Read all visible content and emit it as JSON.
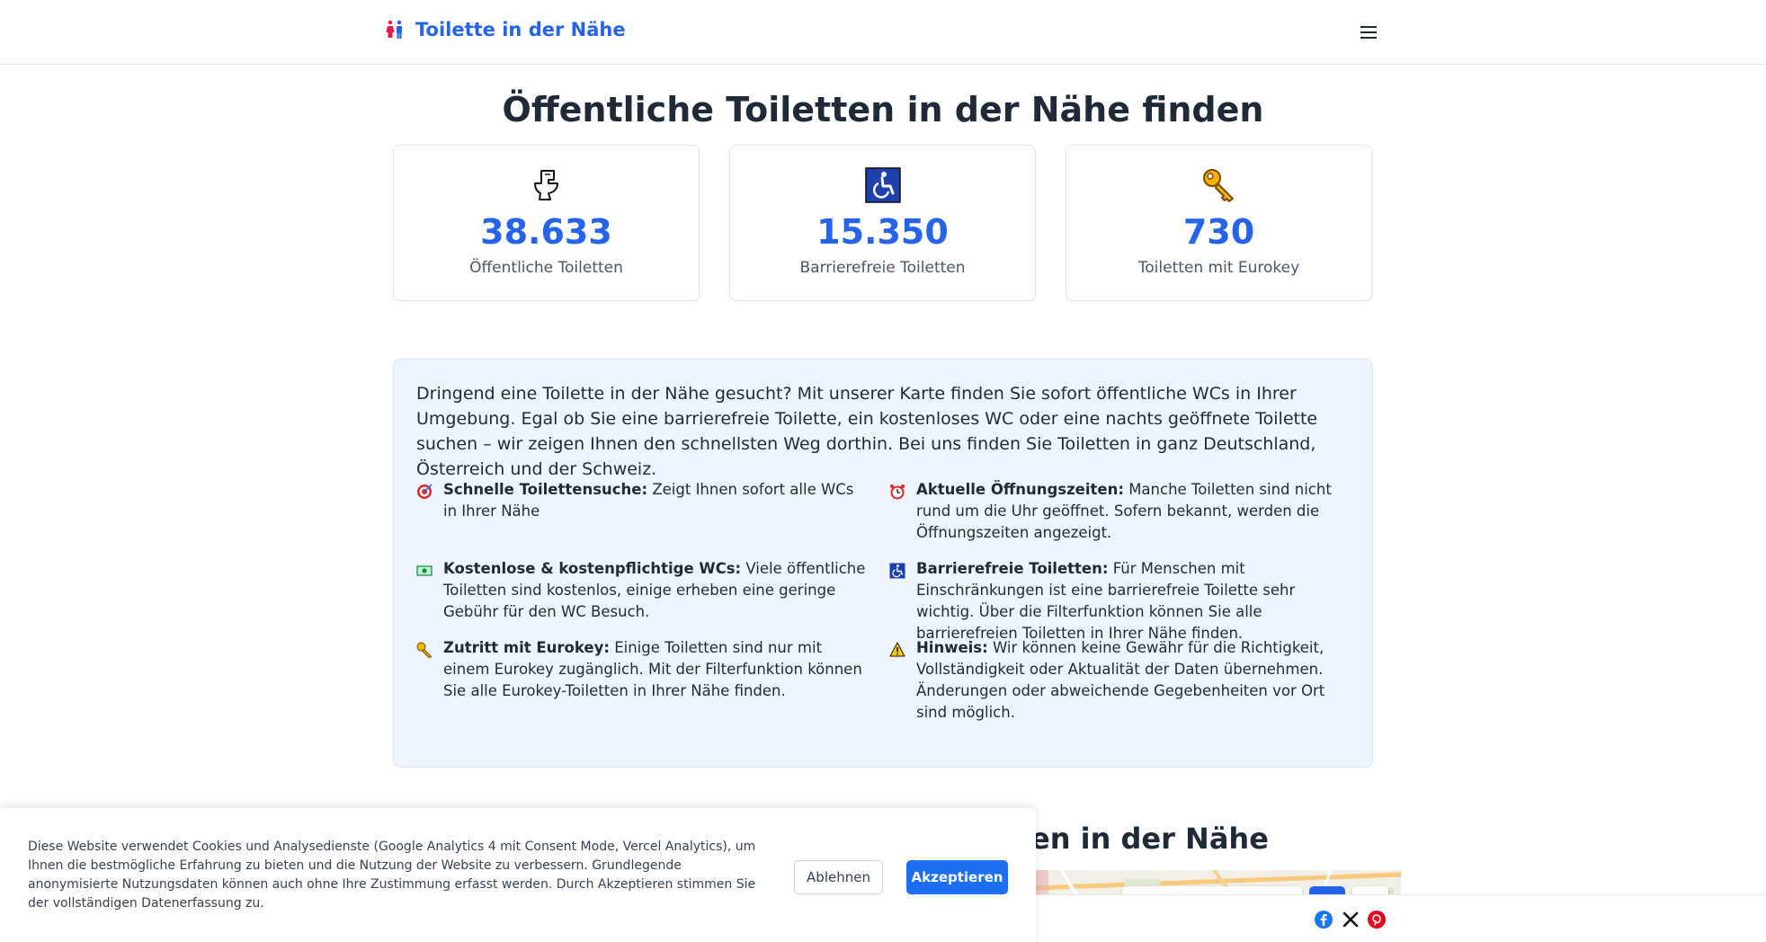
{
  "header": {
    "brand": "Toilette in der Nähe",
    "brand_icon": "restroom-icon",
    "menu_icon": "hamburger-menu-icon"
  },
  "page_title": "Öffentliche Toiletten in der Nähe finden",
  "stats": [
    {
      "icon": "toilet-icon",
      "value": "38.633",
      "label": "Öffentliche Toiletten"
    },
    {
      "icon": "wheelchair-icon",
      "value": "15.350",
      "label": "Barrierefreie Toiletten"
    },
    {
      "icon": "key-icon",
      "value": "730",
      "label": "Toiletten mit Eurokey"
    }
  ],
  "info": {
    "intro": "Dringend eine Toilette in der Nähe gesucht? Mit unserer Karte finden Sie sofort öffentliche WCs in Ihrer Umgebung. Egal ob Sie eine barrierefreie Toilette, ein kostenloses WC oder eine nachts geöffnete Toilette suchen – wir zeigen Ihnen den schnellsten Weg dorthin. Bei uns finden Sie Toiletten in ganz Deutschland, Österreich und der Schweiz.",
    "features": [
      {
        "icon": "target-icon",
        "title": "Schnelle Toilettensuche:",
        "text": " Zeigt Ihnen sofort alle WCs in Ihrer Nähe"
      },
      {
        "icon": "alarm-clock-icon",
        "title": "Aktuelle Öffnungszeiten:",
        "text": " Manche Toiletten sind nicht rund um die Uhr geöffnet. Sofern bekannt, werden die Öffnungszeiten angezeigt."
      },
      {
        "icon": "banknote-icon",
        "title": "Kostenlose & kostenpflichtige WCs:",
        "text": " Viele öffentliche Toiletten sind kostenlos, einige erheben eine geringe Gebühr für den WC Besuch."
      },
      {
        "icon": "wheelchair-icon",
        "title": "Barrierefreie Toiletten:",
        "text": " Für Menschen mit Einschränkungen ist eine barrierefreie Toilette sehr wichtig. Über die Filterfunktion können Sie alle barrierefreien Toiletten in Ihrer Nähe finden."
      },
      {
        "icon": "key-icon",
        "title": "Zutritt mit Eurokey:",
        "text": " Einige Toiletten sind nur mit einem Eurokey zugänglich. Mit der Filterfunktion können Sie alle Eurokey-Toiletten in Ihrer Nähe finden."
      },
      {
        "icon": "warning-icon",
        "title": "Hinweis:",
        "text": " Wir können keine Gewähr für die Richtigkeit, Vollständigkeit oder Aktualität der Daten übernehmen. Änderungen oder abweichende Gegebenheiten vor Ort sind möglich."
      }
    ]
  },
  "section2_title_partial": "en in der Nähe",
  "cookie": {
    "text": "Diese Website verwendet Cookies und Analysedienste (Google Analytics 4 mit Consent Mode, Vercel Analytics), um Ihnen die bestmögliche Erfahrung zu bieten und die Nutzung der Website zu verbessern. Grundlegende anonymisierte Nutzungsdaten können auch ohne Ihre Zustimmung erfasst werden. Durch Akzeptieren stimmen Sie der vollständigen Datenerfassung zu.",
    "decline": "Ablehnen",
    "accept": "Akzeptieren"
  },
  "share": [
    "facebook-icon",
    "x-icon",
    "pinterest-icon"
  ],
  "colors": {
    "accent": "#2563eb",
    "info_bg": "#eef5ff",
    "accept_button": "#1d6ff2"
  }
}
